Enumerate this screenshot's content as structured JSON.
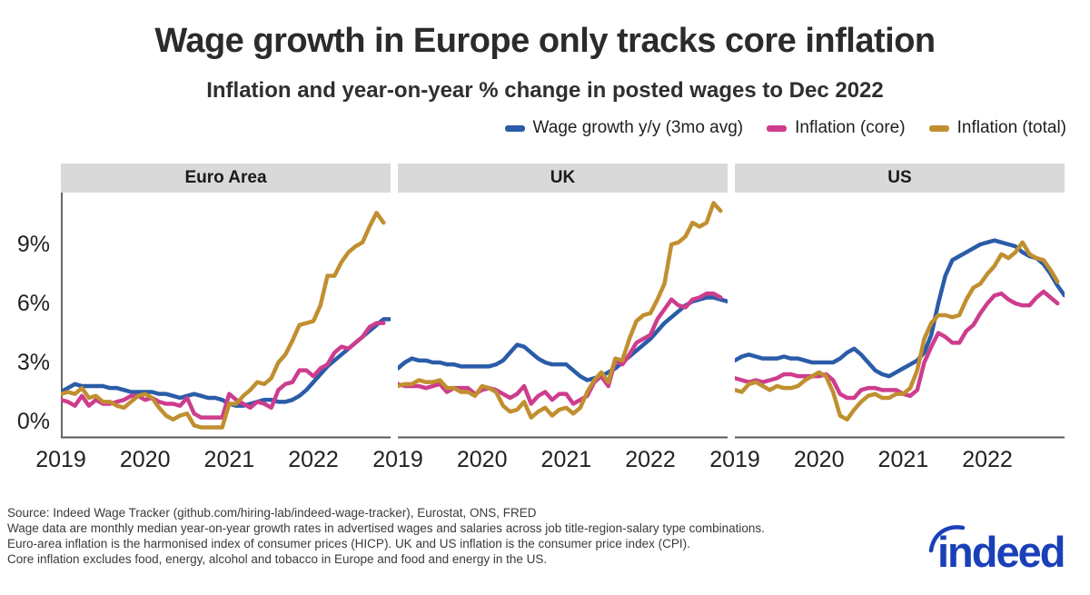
{
  "title": "Wage growth in Europe only tracks core inflation",
  "subtitle": "Inflation and year-on-year % change in posted wages to Dec 2022",
  "legend": [
    {
      "label": "Wage growth y/y (3mo avg)",
      "color": "#2a5ca8"
    },
    {
      "label": "Inflation (core)",
      "color": "#ce3d8d"
    },
    {
      "label": "Inflation (total)",
      "color": "#c08f2f"
    }
  ],
  "footer": {
    "line1": "Source: Indeed Wage Tracker (github.com/hiring-lab/indeed-wage-tracker), Eurostat, ONS, FRED",
    "line2": "Wage data are monthly median year-on-year growth rates in advertised wages and salaries across job title-region-salary type combinations.",
    "line3": "Euro-area inflation is the harmonised index of consumer prices (HICP). UK and US inflation is the consumer price index (CPI).",
    "line4": "Core inflation excludes food, energy, alcohol and tobacco in Europe and food and energy in the US."
  },
  "logo_text": "indeed",
  "chart_data": {
    "type": "line",
    "x_unit": "month",
    "x_range": [
      "2019-01",
      "2022-12"
    ],
    "x_tick_labels": [
      "2019",
      "2020",
      "2021",
      "2022"
    ],
    "x_tick_month_index": [
      0,
      12,
      24,
      36
    ],
    "y_ticks": [
      0,
      3,
      6,
      9
    ],
    "y_tick_labels": [
      "0%",
      "3%",
      "6%",
      "9%"
    ],
    "ylim": [
      -0.85,
      11.65
    ],
    "grid": false,
    "legend_position": "top-right",
    "panels": [
      {
        "title": "Euro Area",
        "series": [
          {
            "name": "Wage growth y/y (3mo avg)",
            "color": "#2a5ca8",
            "values": [
              1.5,
              1.7,
              1.9,
              1.8,
              1.8,
              1.8,
              1.8,
              1.7,
              1.7,
              1.6,
              1.5,
              1.5,
              1.5,
              1.5,
              1.4,
              1.4,
              1.3,
              1.2,
              1.3,
              1.4,
              1.3,
              1.2,
              1.2,
              1.1,
              0.9,
              0.8,
              0.8,
              0.9,
              1.0,
              1.1,
              1.1,
              1.0,
              1.0,
              1.1,
              1.3,
              1.6,
              2.0,
              2.4,
              2.8,
              3.1,
              3.4,
              3.7,
              4.0,
              4.3,
              4.6,
              4.9,
              5.2,
              5.2
            ]
          },
          {
            "name": "Inflation (core)",
            "color": "#ce3d8d",
            "values": [
              1.1,
              1.0,
              0.8,
              1.3,
              0.8,
              1.1,
              0.9,
              0.9,
              1.0,
              1.1,
              1.3,
              1.3,
              1.1,
              1.2,
              1.0,
              0.9,
              0.9,
              0.8,
              1.2,
              0.4,
              0.2,
              0.2,
              0.2,
              0.2,
              1.4,
              1.1,
              0.9,
              0.7,
              1.0,
              0.9,
              0.7,
              1.6,
              1.9,
              2.0,
              2.6,
              2.6,
              2.3,
              2.7,
              2.9,
              3.5,
              3.8,
              3.7,
              4.0,
              4.3,
              4.8,
              5.0,
              5.0
            ]
          },
          {
            "name": "Inflation (total)",
            "color": "#c08f2f",
            "values": [
              1.4,
              1.5,
              1.4,
              1.7,
              1.2,
              1.3,
              1.0,
              1.0,
              0.8,
              0.7,
              1.0,
              1.3,
              1.4,
              1.2,
              0.7,
              0.3,
              0.1,
              0.3,
              0.4,
              -0.2,
              -0.3,
              -0.3,
              -0.3,
              -0.3,
              0.9,
              0.9,
              1.3,
              1.6,
              2.0,
              1.9,
              2.2,
              3.0,
              3.4,
              4.1,
              4.9,
              5.0,
              5.1,
              5.9,
              7.4,
              7.4,
              8.1,
              8.6,
              8.9,
              9.1,
              9.9,
              10.6,
              10.1
            ]
          }
        ]
      },
      {
        "title": "UK",
        "series": [
          {
            "name": "Wage growth y/y (3mo avg)",
            "color": "#2a5ca8",
            "values": [
              2.7,
              3.0,
              3.2,
              3.1,
              3.1,
              3.0,
              3.0,
              2.9,
              2.9,
              2.8,
              2.8,
              2.8,
              2.8,
              2.8,
              2.9,
              3.1,
              3.5,
              3.9,
              3.8,
              3.5,
              3.2,
              3.0,
              2.9,
              2.9,
              2.9,
              2.6,
              2.3,
              2.1,
              2.2,
              2.3,
              2.5,
              2.7,
              3.0,
              3.3,
              3.6,
              3.9,
              4.2,
              4.6,
              5.0,
              5.3,
              5.6,
              5.9,
              6.1,
              6.2,
              6.3,
              6.3,
              6.2,
              6.1
            ]
          },
          {
            "name": "Inflation (core)",
            "color": "#ce3d8d",
            "values": [
              1.9,
              1.8,
              1.8,
              1.8,
              1.7,
              1.8,
              1.9,
              1.5,
              1.7,
              1.7,
              1.7,
              1.4,
              1.6,
              1.7,
              1.6,
              1.4,
              1.2,
              1.4,
              1.8,
              0.9,
              1.3,
              1.5,
              1.1,
              1.4,
              1.4,
              0.9,
              1.1,
              1.3,
              2.0,
              2.3,
              1.8,
              3.1,
              2.9,
              3.4,
              4.0,
              4.2,
              4.4,
              5.2,
              5.7,
              6.2,
              5.9,
              5.8,
              6.2,
              6.3,
              6.5,
              6.5,
              6.3
            ]
          },
          {
            "name": "Inflation (total)",
            "color": "#c08f2f",
            "values": [
              1.8,
              1.9,
              1.9,
              2.1,
              2.0,
              2.0,
              2.1,
              1.7,
              1.7,
              1.5,
              1.5,
              1.3,
              1.8,
              1.7,
              1.5,
              0.8,
              0.5,
              0.6,
              1.0,
              0.2,
              0.5,
              0.7,
              0.3,
              0.6,
              0.7,
              0.4,
              0.7,
              1.5,
              2.1,
              2.5,
              2.0,
              3.2,
              3.1,
              4.2,
              5.1,
              5.4,
              5.5,
              6.2,
              7.0,
              9.0,
              9.1,
              9.4,
              10.1,
              9.9,
              10.1,
              11.1,
              10.7
            ]
          }
        ]
      },
      {
        "title": "US",
        "series": [
          {
            "name": "Wage growth y/y (3mo avg)",
            "color": "#2a5ca8",
            "values": [
              3.1,
              3.3,
              3.4,
              3.3,
              3.2,
              3.2,
              3.2,
              3.3,
              3.2,
              3.2,
              3.1,
              3.0,
              3.0,
              3.0,
              3.0,
              3.2,
              3.5,
              3.7,
              3.4,
              3.0,
              2.6,
              2.4,
              2.3,
              2.5,
              2.7,
              2.9,
              3.1,
              3.5,
              4.4,
              6.0,
              7.4,
              8.2,
              8.4,
              8.6,
              8.8,
              9.0,
              9.1,
              9.2,
              9.1,
              9.0,
              8.9,
              8.6,
              8.4,
              8.3,
              8.0,
              7.5,
              6.9,
              6.4
            ]
          },
          {
            "name": "Inflation (core)",
            "color": "#ce3d8d",
            "values": [
              2.2,
              2.1,
              2.0,
              2.1,
              2.0,
              2.1,
              2.2,
              2.4,
              2.4,
              2.3,
              2.3,
              2.3,
              2.3,
              2.4,
              2.1,
              1.4,
              1.2,
              1.2,
              1.6,
              1.7,
              1.7,
              1.6,
              1.6,
              1.6,
              1.4,
              1.3,
              1.6,
              3.0,
              3.8,
              4.5,
              4.3,
              4.0,
              4.0,
              4.6,
              4.9,
              5.5,
              6.0,
              6.4,
              6.5,
              6.2,
              6.0,
              5.9,
              5.9,
              6.3,
              6.6,
              6.3,
              6.0
            ]
          },
          {
            "name": "Inflation (total)",
            "color": "#c08f2f",
            "values": [
              1.6,
              1.5,
              1.9,
              2.0,
              1.8,
              1.6,
              1.8,
              1.7,
              1.7,
              1.8,
              2.1,
              2.3,
              2.5,
              2.3,
              1.5,
              0.3,
              0.1,
              0.6,
              1.0,
              1.3,
              1.4,
              1.2,
              1.2,
              1.4,
              1.4,
              1.7,
              2.6,
              4.2,
              5.0,
              5.4,
              5.4,
              5.3,
              5.4,
              6.2,
              6.8,
              7.0,
              7.5,
              7.9,
              8.5,
              8.3,
              8.6,
              9.1,
              8.5,
              8.3,
              8.2,
              7.7,
              7.1
            ]
          }
        ]
      }
    ]
  }
}
